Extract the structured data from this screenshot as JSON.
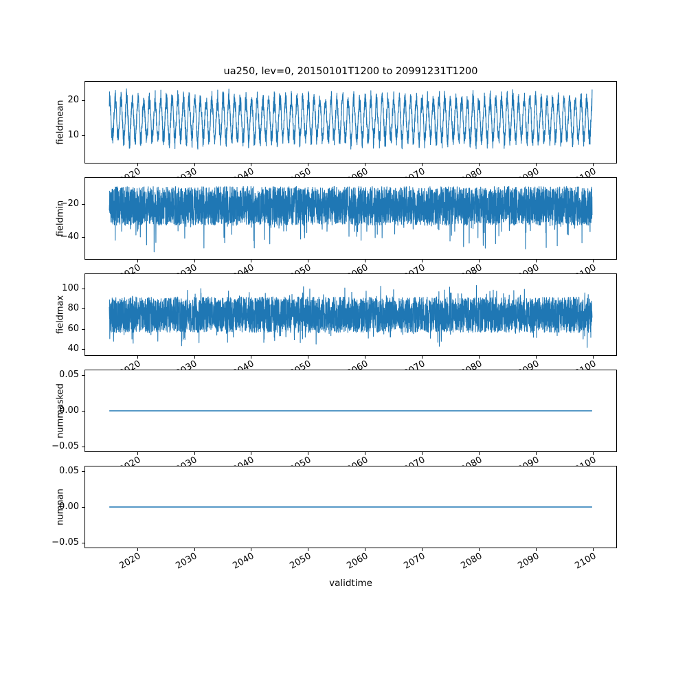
{
  "figure": {
    "title": "ua250, lev=0, 20150101T1200 to 20991231T1200",
    "xlabel": "validtime",
    "line_color": "#1f77b4",
    "background": "#ffffff"
  },
  "chart_data": [
    {
      "type": "line",
      "ylabel": "fieldmean",
      "x_range": [
        2015.0,
        2100.0
      ],
      "xlim": [
        2010.75,
        2104.25
      ],
      "ylim": [
        2.0,
        25.5
      ],
      "ytick_vals": [
        10,
        20
      ],
      "ytick_labels": [
        "10",
        "20"
      ],
      "xtick_vals": [
        2020,
        2030,
        2040,
        2050,
        2060,
        2070,
        2080,
        2090,
        2100
      ],
      "xtick_labels": [
        "2020",
        "2030",
        "2040",
        "2050",
        "2060",
        "2070",
        "2080",
        "2090",
        "2100"
      ],
      "series_summary": {
        "pattern": "annual sinusoidal cycle with noise",
        "approx_min": 4,
        "approx_max": 24.5,
        "approx_mean": 14.6,
        "cycles": 85
      },
      "gen": {
        "kind": "seasonal",
        "seed": 11,
        "n": 4200,
        "base": 14.6,
        "amp": 5.8,
        "noise": 1.9,
        "clip": [
          3.2,
          24.6
        ]
      }
    },
    {
      "type": "line",
      "ylabel": "fieldmin",
      "x_range": [
        2015.0,
        2100.0
      ],
      "xlim": [
        2010.75,
        2104.25
      ],
      "ylim": [
        -53.75,
        -3.75
      ],
      "ytick_vals": [
        -20,
        -40
      ],
      "ytick_labels": [
        "−20",
        "−40"
      ],
      "xtick_vals": [
        2020,
        2030,
        2040,
        2050,
        2060,
        2070,
        2080,
        2090,
        2100
      ],
      "xtick_labels": [
        "2020",
        "2030",
        "2040",
        "2050",
        "2060",
        "2070",
        "2080",
        "2090",
        "2100"
      ],
      "series_summary": {
        "pattern": "dense noise band with downward spikes",
        "band": [
          -33,
          -9
        ],
        "spike_min": -50
      },
      "gen": {
        "kind": "band",
        "seed": 22,
        "n": 4200,
        "base": -9,
        "spread": -24,
        "p_low": 0.05,
        "low": -17,
        "p_high": 0.0,
        "high": 0,
        "clip": [
          -51,
          -6.5
        ]
      }
    },
    {
      "type": "line",
      "ylabel": "fieldmax",
      "x_range": [
        2015.0,
        2100.0
      ],
      "xlim": [
        2010.75,
        2104.25
      ],
      "ylim": [
        33.2,
        115.0
      ],
      "ytick_vals": [
        40,
        60,
        80,
        100
      ],
      "ytick_labels": [
        "40",
        "60",
        "80",
        "100"
      ],
      "xtick_vals": [
        2020,
        2030,
        2040,
        2050,
        2060,
        2070,
        2080,
        2090,
        2100
      ],
      "xtick_labels": [
        "2020",
        "2030",
        "2040",
        "2050",
        "2060",
        "2070",
        "2080",
        "2090",
        "2100"
      ],
      "series_summary": {
        "pattern": "dense noise band with spikes both ways",
        "band": [
          56,
          92
        ],
        "spike_max": 107,
        "spike_min": 39
      },
      "gen": {
        "kind": "band",
        "seed": 33,
        "n": 4200,
        "base": 92,
        "spread": -36,
        "p_low": 0.06,
        "low": -16,
        "p_high": 0.05,
        "high": 15,
        "clip": [
          38,
          108
        ]
      }
    },
    {
      "type": "line",
      "ylabel": "nummasked",
      "x_range": [
        2015.0,
        2100.0
      ],
      "xlim": [
        2010.75,
        2104.25
      ],
      "ylim": [
        -0.0575,
        0.0575
      ],
      "ytick_vals": [
        -0.05,
        0.0,
        0.05
      ],
      "ytick_labels": [
        "−0.05",
        "0.00",
        "0.05"
      ],
      "xtick_vals": [
        2020,
        2030,
        2040,
        2050,
        2060,
        2070,
        2080,
        2090,
        2100
      ],
      "xtick_labels": [
        "2020",
        "2030",
        "2040",
        "2050",
        "2060",
        "2070",
        "2080",
        "2090",
        "2100"
      ],
      "series_summary": {
        "pattern": "constant",
        "value": 0.0
      },
      "gen": {
        "kind": "constant",
        "value": 0.0
      }
    },
    {
      "type": "line",
      "ylabel": "numnan",
      "x_range": [
        2015.0,
        2100.0
      ],
      "xlim": [
        2010.75,
        2104.25
      ],
      "ylim": [
        -0.0575,
        0.0575
      ],
      "ytick_vals": [
        -0.05,
        0.0,
        0.05
      ],
      "ytick_labels": [
        "−0.05",
        "0.00",
        "0.05"
      ],
      "xtick_vals": [
        2020,
        2030,
        2040,
        2050,
        2060,
        2070,
        2080,
        2090,
        2100
      ],
      "xtick_labels": [
        "2020",
        "2030",
        "2040",
        "2050",
        "2060",
        "2070",
        "2080",
        "2090",
        "2100"
      ],
      "series_summary": {
        "pattern": "constant",
        "value": 0.0
      },
      "gen": {
        "kind": "constant",
        "value": 0.0
      }
    }
  ]
}
